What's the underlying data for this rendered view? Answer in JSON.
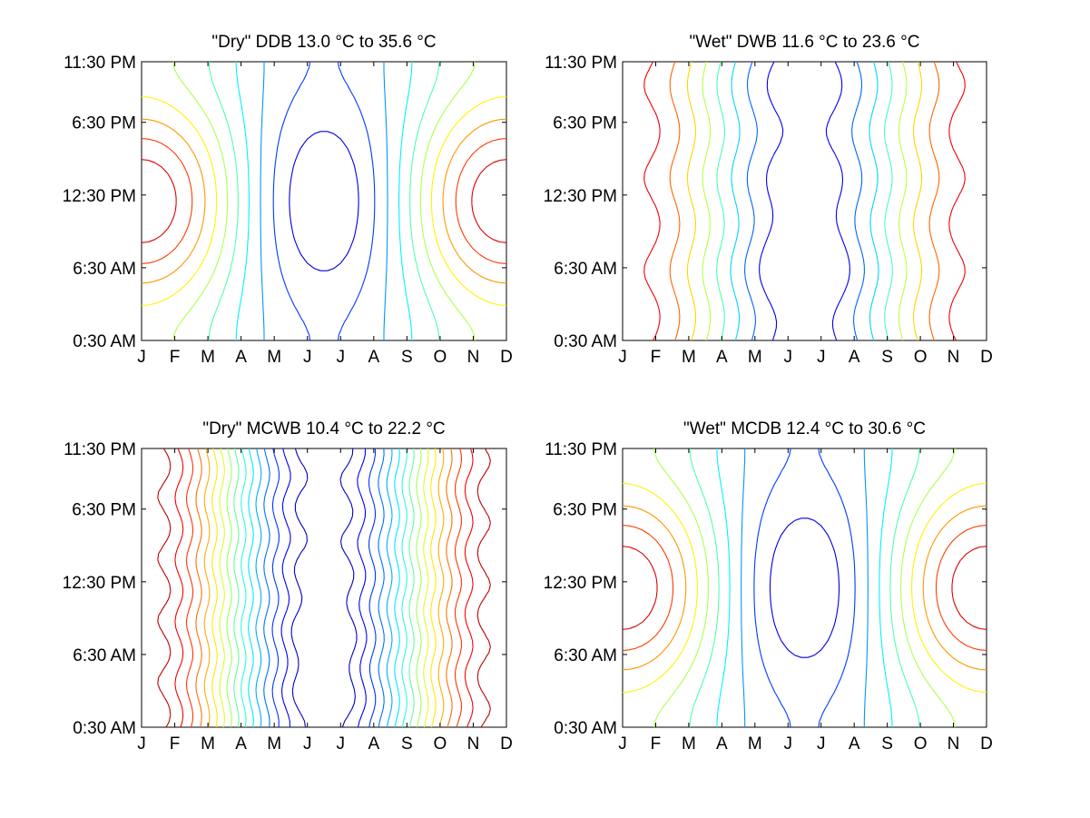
{
  "chart_data": [
    {
      "type": "contour",
      "title": "\"Dry\" DDB  13.0 °C to  35.6 °C",
      "x_tick_labels": [
        "J",
        "F",
        "M",
        "A",
        "M",
        "J",
        "J",
        "A",
        "S",
        "O",
        "N",
        "D"
      ],
      "y_tick_labels": [
        "0:30 AM",
        "6:30 AM",
        "12:30 PM",
        "6:30 PM",
        "11:30 PM"
      ],
      "y_ticks_hour": [
        0.5,
        6.5,
        12.5,
        18.5,
        23.5
      ],
      "xlim": [
        1,
        12
      ],
      "ylim": [
        0.5,
        23.5
      ],
      "z_range": [
        13.0,
        35.6
      ],
      "grid": false,
      "pattern": "hot-edges",
      "levels": 10
    },
    {
      "type": "contour",
      "title": "\"Wet\" DWB  11.6 °C to  23.6 °C",
      "x_tick_labels": [
        "J",
        "F",
        "M",
        "A",
        "M",
        "J",
        "J",
        "A",
        "S",
        "O",
        "N",
        "D"
      ],
      "y_tick_labels": [
        "0:30 AM",
        "6:30 AM",
        "12:30 PM",
        "6:30 PM",
        "11:30 PM"
      ],
      "y_ticks_hour": [
        0.5,
        6.5,
        12.5,
        18.5,
        23.5
      ],
      "xlim": [
        1,
        12
      ],
      "ylim": [
        0.5,
        23.5
      ],
      "z_range": [
        11.6,
        23.6
      ],
      "grid": false,
      "pattern": "vertical",
      "levels": 8
    },
    {
      "type": "contour",
      "title": "\"Dry\" MCWB  10.4 °C to  22.2 °C",
      "x_tick_labels": [
        "J",
        "F",
        "M",
        "A",
        "M",
        "J",
        "J",
        "A",
        "S",
        "O",
        "N",
        "D"
      ],
      "y_tick_labels": [
        "0:30 AM",
        "6:30 AM",
        "12:30 PM",
        "6:30 PM",
        "11:30 PM"
      ],
      "y_ticks_hour": [
        0.5,
        6.5,
        12.5,
        18.5,
        23.5
      ],
      "xlim": [
        1,
        12
      ],
      "ylim": [
        0.5,
        23.5
      ],
      "z_range": [
        10.4,
        22.2
      ],
      "grid": false,
      "pattern": "vertical-dense",
      "levels": 16
    },
    {
      "type": "contour",
      "title": "\"Wet\" MCDB  12.4 °C to  30.6 °C",
      "x_tick_labels": [
        "J",
        "F",
        "M",
        "A",
        "M",
        "J",
        "J",
        "A",
        "S",
        "O",
        "N",
        "D"
      ],
      "y_tick_labels": [
        "0:30 AM",
        "6:30 AM",
        "12:30 PM",
        "6:30 PM",
        "11:30 PM"
      ],
      "y_ticks_hour": [
        0.5,
        6.5,
        12.5,
        18.5,
        23.5
      ],
      "xlim": [
        1,
        12
      ],
      "ylim": [
        0.5,
        23.5
      ],
      "z_range": [
        12.4,
        30.6
      ],
      "grid": false,
      "pattern": "hot-edges",
      "levels": 10
    }
  ],
  "colors": {
    "colormap": [
      "#00008f",
      "#0000ff",
      "#0080ff",
      "#00ffff",
      "#80ff80",
      "#ffff00",
      "#ff8000",
      "#ff0000",
      "#800000"
    ],
    "axes": "#000000",
    "background": "#ffffff"
  }
}
